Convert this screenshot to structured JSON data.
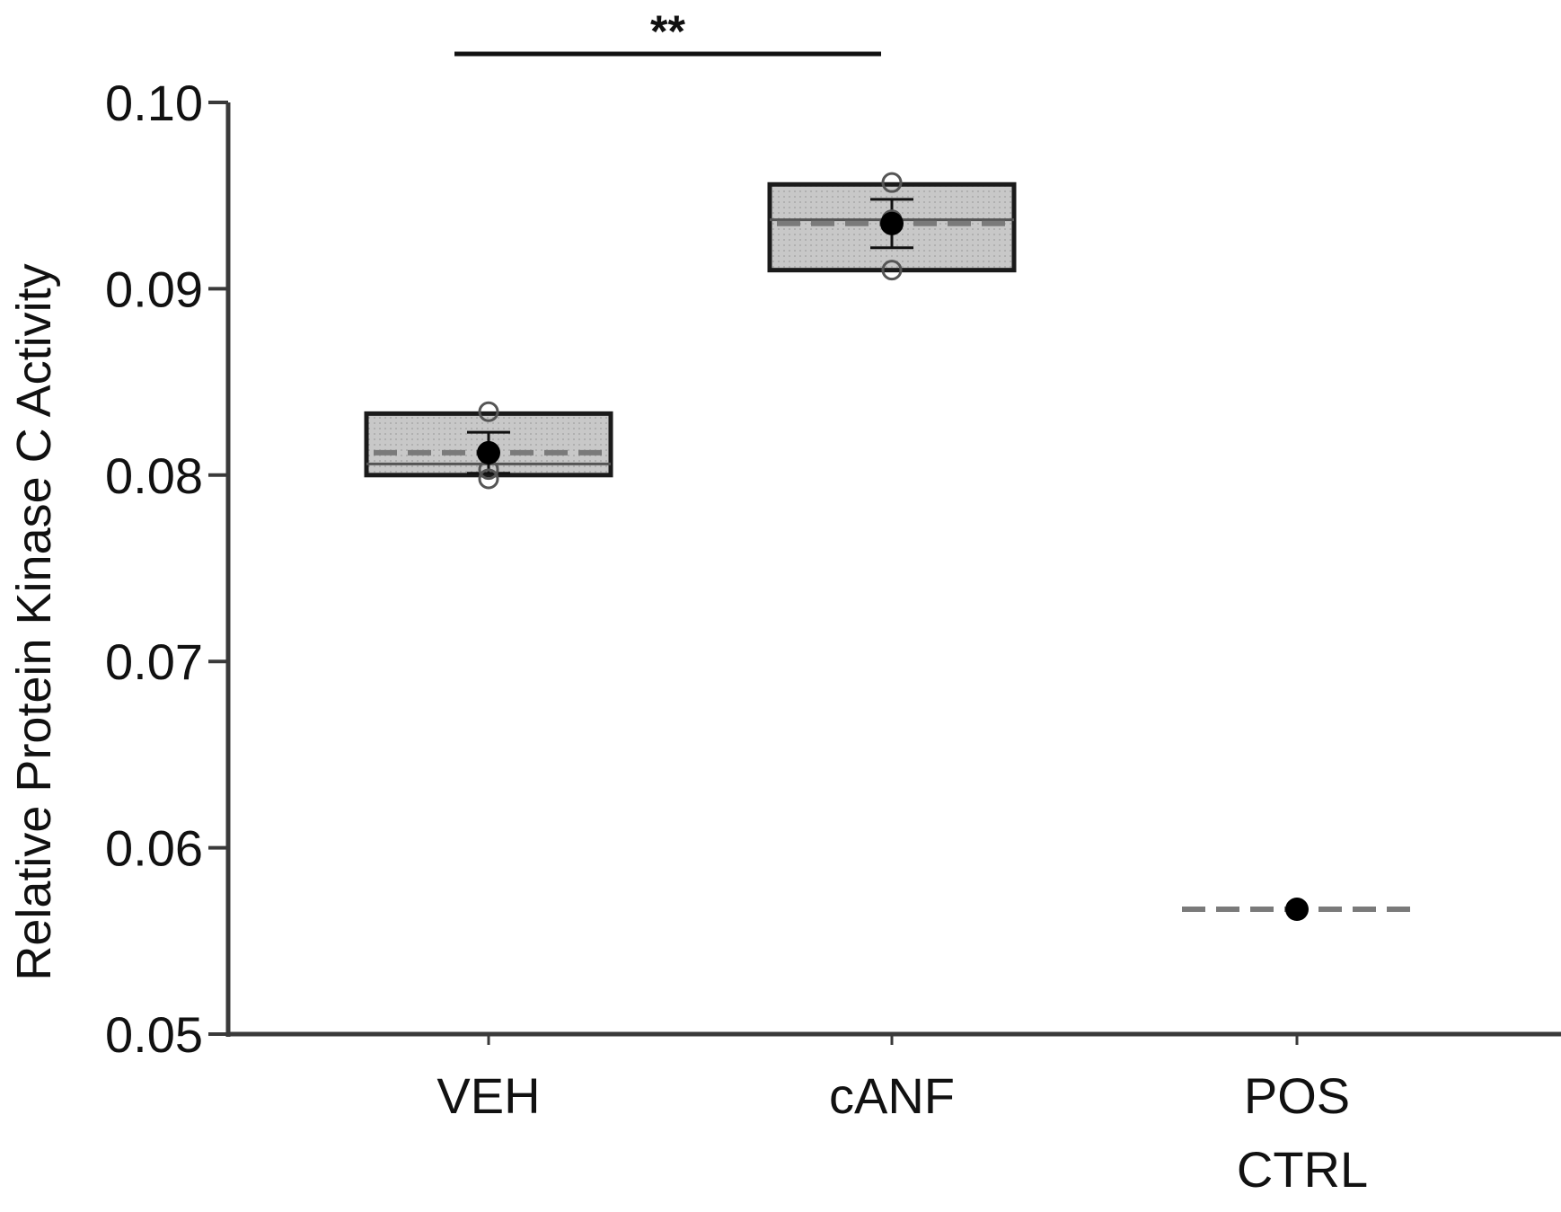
{
  "chart_data": {
    "type": "box",
    "ylabel": "Relative Protein Kinase C Activity",
    "xlabel": "",
    "ylim": [
      0.05,
      0.1
    ],
    "yticks": [
      "0.05",
      "0.06",
      "0.07",
      "0.08",
      "0.09",
      "0.10"
    ],
    "categories": [
      {
        "label": "VEH",
        "label_line2": ""
      },
      {
        "label": "cANF",
        "label_line2": ""
      },
      {
        "label": "POS",
        "label_line2": "CTRL"
      }
    ],
    "groups": [
      {
        "category": "VEH",
        "box_low": 0.08,
        "box_high": 0.0833,
        "median": 0.0806,
        "mean_dashed": 0.0812,
        "mean": 0.0812,
        "error_low": 0.0801,
        "error_high": 0.0823,
        "points": [
          0.0834,
          0.0798,
          0.0803
        ]
      },
      {
        "category": "cANF",
        "box_low": 0.091,
        "box_high": 0.0956,
        "median": 0.0937,
        "mean_dashed": 0.0935,
        "mean": 0.0935,
        "error_low": 0.0922,
        "error_high": 0.0948,
        "points": [
          0.0957,
          0.091,
          0.0937
        ]
      },
      {
        "category": "POS CTRL",
        "box_low": null,
        "box_high": null,
        "median": null,
        "mean_dashed": 0.0567,
        "mean": 0.0567,
        "error_low": null,
        "error_high": null,
        "points": []
      }
    ],
    "significance": [
      {
        "from": "VEH",
        "to": "cANF",
        "label": "**"
      }
    ],
    "grid": false,
    "colors": {
      "box_fill": "#c8c8c8",
      "box_stroke": "#1a1a1a",
      "axis": "#3a3a3a",
      "dashed_line": "#7a7a7a",
      "mean_marker": "#000000",
      "point_stroke": "#555555"
    }
  }
}
